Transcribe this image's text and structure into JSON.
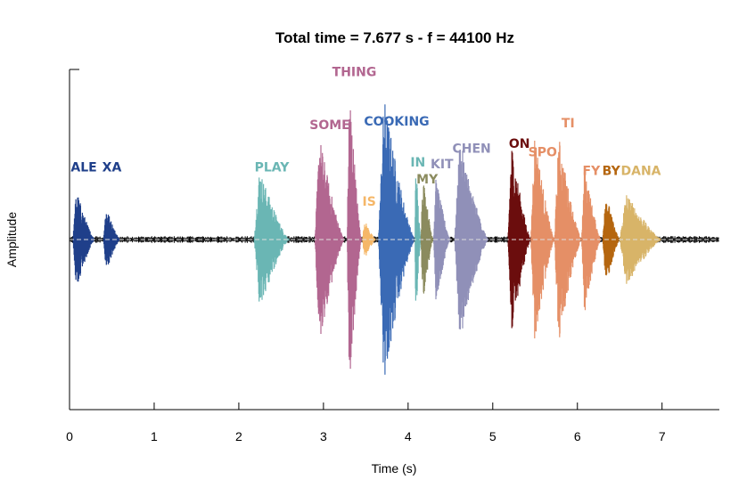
{
  "chart_data": {
    "type": "area",
    "title": "Total time = 7.677 s - f = 44100 Hz",
    "xlabel": "Time (s)",
    "ylabel": "Amplitude",
    "xlim": [
      0,
      7.677
    ],
    "ylim": [
      -1,
      1
    ],
    "x_ticks": [
      "0",
      "1",
      "2",
      "3",
      "4",
      "5",
      "6",
      "7"
    ],
    "grid": false,
    "zero_line": true,
    "segments": [
      {
        "word": "ALE",
        "start": 0.04,
        "end": 0.3,
        "amp": 0.3,
        "color": "#1f3f8a",
        "label_y": 0.4
      },
      {
        "word": "XA",
        "start": 0.4,
        "end": 0.6,
        "amp": 0.2,
        "color": "#1f3f8a",
        "label_y": 0.4
      },
      {
        "word": "PLAY",
        "start": 2.18,
        "end": 2.6,
        "amp": 0.42,
        "color": "#6ab6b4",
        "label_y": 0.4
      },
      {
        "word": "SOME",
        "start": 2.9,
        "end": 3.25,
        "amp": 0.62,
        "color": "#b26690",
        "label_y": 0.65
      },
      {
        "word": "THING",
        "start": 3.28,
        "end": 3.45,
        "amp": 0.95,
        "color": "#b26690",
        "label_y": 0.96
      },
      {
        "word": "IS",
        "start": 3.46,
        "end": 3.62,
        "amp": 0.12,
        "color": "#f5b768",
        "label_y": 0.2
      },
      {
        "word": "COOKING",
        "start": 3.65,
        "end": 4.08,
        "amp": 0.85,
        "color": "#3a6ab5",
        "label_y": 0.67
      },
      {
        "word": "IN",
        "start": 4.08,
        "end": 4.15,
        "amp": 0.5,
        "color": "#6ab6b4",
        "label_y": 0.43
      },
      {
        "word": "MY",
        "start": 4.15,
        "end": 4.3,
        "amp": 0.4,
        "color": "#8b8b5e",
        "label_y": 0.33
      },
      {
        "word": "KIT",
        "start": 4.3,
        "end": 4.5,
        "amp": 0.38,
        "color": "#9090b8",
        "label_y": 0.42
      },
      {
        "word": "CHEN",
        "start": 4.55,
        "end": 4.95,
        "amp": 0.6,
        "color": "#9090b8",
        "label_y": 0.51
      },
      {
        "word": "ON",
        "start": 5.18,
        "end": 5.45,
        "amp": 0.58,
        "color": "#6b0d0d",
        "label_y": 0.54
      },
      {
        "word": "SPO",
        "start": 5.45,
        "end": 5.73,
        "amp": 0.65,
        "color": "#e58f66",
        "label_y": 0.49
      },
      {
        "word": "TI",
        "start": 5.73,
        "end": 6.05,
        "amp": 0.62,
        "color": "#e58f66",
        "label_y": 0.66
      },
      {
        "word": "FY",
        "start": 6.05,
        "end": 6.28,
        "amp": 0.45,
        "color": "#e58f66",
        "label_y": 0.38
      },
      {
        "word": "BY",
        "start": 6.3,
        "end": 6.5,
        "amp": 0.3,
        "color": "#b5660f",
        "label_y": 0.38
      },
      {
        "word": "DANA",
        "start": 6.5,
        "end": 7.0,
        "amp": 0.28,
        "color": "#d8b468",
        "label_y": 0.38
      }
    ]
  }
}
